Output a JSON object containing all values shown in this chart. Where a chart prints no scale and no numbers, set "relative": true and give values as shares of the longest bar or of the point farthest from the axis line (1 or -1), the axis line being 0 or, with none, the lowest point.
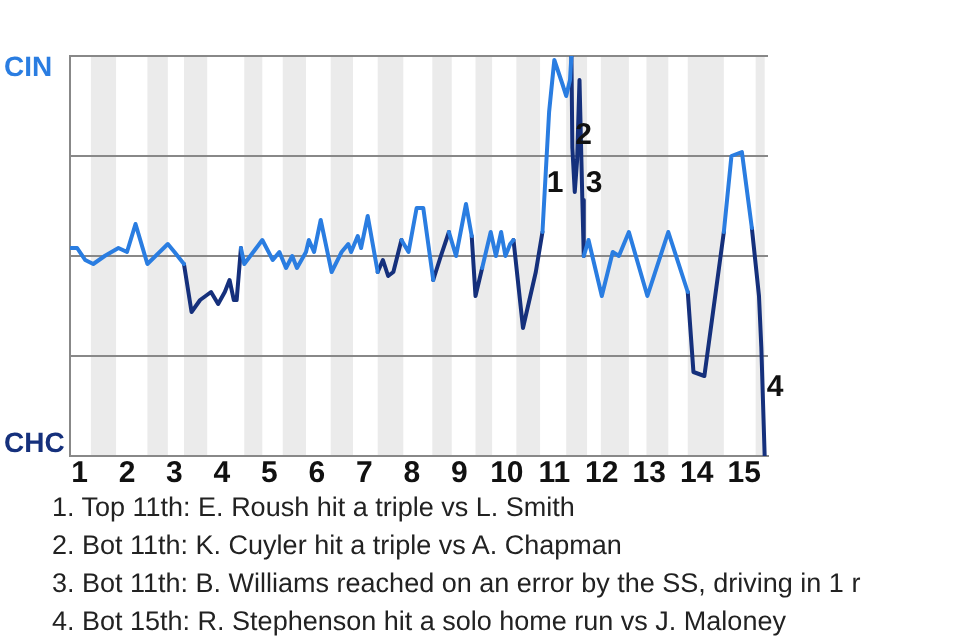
{
  "chart_data": {
    "type": "line",
    "x": [
      0.82,
      0.95,
      1.12,
      1.29,
      1.53,
      1.82,
      2.0,
      2.18,
      2.43,
      2.86,
      3.0,
      3.2,
      3.36,
      3.54,
      3.77,
      3.92,
      4.06,
      4.16,
      4.25,
      4.31,
      4.4,
      4.47,
      4.85,
      5.07,
      5.21,
      5.35,
      5.48,
      5.58,
      5.77,
      5.83,
      5.94,
      6.08,
      6.31,
      6.52,
      6.66,
      6.72,
      6.86,
      6.93,
      7.07,
      7.28,
      7.39,
      7.5,
      7.61,
      7.78,
      7.93,
      8.1,
      8.24,
      8.45,
      8.61,
      8.78,
      8.93,
      9.14,
      9.26,
      9.34,
      9.48,
      9.66,
      9.77,
      9.88,
      9.97,
      10.07,
      10.14,
      10.34,
      10.61,
      10.75,
      10.89,
      11.0,
      11.17,
      11.25,
      11.33,
      11.36,
      11.38,
      11.43,
      11.48,
      11.53,
      11.59,
      11.62,
      11.72,
      12.0,
      12.23,
      12.36,
      12.57,
      12.96,
      13.4,
      13.81,
      13.93,
      14.16,
      14.57,
      14.73,
      14.95,
      15.16,
      15.31,
      15.36,
      15.43
    ],
    "series": [
      {
        "name": "CIN",
        "color": "#2a7de1",
        "values": [
          0.52,
          0.52,
          0.49,
          0.48,
          0.5,
          0.52,
          0.51,
          0.58,
          0.48,
          0.53,
          0.51,
          0.48,
          null,
          null,
          null,
          null,
          null,
          null,
          null,
          null,
          0.52,
          0.48,
          0.54,
          0.49,
          0.51,
          0.47,
          0.5,
          0.47,
          0.51,
          0.54,
          0.51,
          0.59,
          0.46,
          0.51,
          0.53,
          0.51,
          0.55,
          0.52,
          0.6,
          0.46,
          null,
          null,
          null,
          0.54,
          0.51,
          0.62,
          0.62,
          0.44,
          null,
          0.56,
          0.5,
          0.63,
          0.55,
          null,
          0.47,
          0.56,
          0.5,
          0.56,
          0.5,
          0.53,
          0.54,
          null,
          null,
          0.56,
          0.86,
          0.99,
          0.93,
          0.9,
          0.94,
          1,
          null,
          null,
          null,
          null,
          null,
          0.5,
          0.54,
          0.4,
          0.51,
          0.5,
          0.56,
          0.4,
          0.56,
          0.41,
          null,
          null,
          0.56,
          0.75,
          0.76,
          0.57,
          null,
          null,
          null
        ]
      },
      {
        "name": "CHC",
        "color": "#15307c",
        "values": [
          null,
          null,
          null,
          null,
          null,
          null,
          null,
          null,
          null,
          null,
          null,
          0.48,
          0.36,
          0.39,
          0.41,
          0.38,
          0.41,
          0.44,
          0.39,
          0.39,
          0.52,
          null,
          null,
          null,
          null,
          null,
          null,
          null,
          null,
          null,
          null,
          null,
          null,
          null,
          null,
          null,
          null,
          null,
          null,
          0.46,
          0.49,
          0.45,
          0.46,
          0.54,
          null,
          null,
          null,
          0.44,
          0.5,
          0.56,
          null,
          null,
          0.55,
          0.4,
          0.47,
          null,
          null,
          null,
          null,
          null,
          0.54,
          0.32,
          0.46,
          0.56,
          null,
          null,
          null,
          null,
          null,
          1,
          0.77,
          0.66,
          0.74,
          0.94,
          0.64,
          0.5,
          null,
          null,
          null,
          null,
          null,
          null,
          null,
          0.41,
          0.21,
          0.2,
          0.56,
          null,
          null,
          0.57,
          0.4,
          0.27,
          0
        ]
      }
    ],
    "relative": true,
    "xlim": [
      0.8,
      15.5
    ],
    "xticks": [
      1,
      2,
      3,
      4,
      5,
      6,
      7,
      8,
      9,
      10,
      11,
      12,
      13,
      14,
      15
    ],
    "bands": [
      {
        "axis": "x",
        "from": 1.24,
        "to": 1.77,
        "color": "#ebebeb"
      },
      {
        "axis": "x",
        "from": 2.43,
        "to": 2.86,
        "color": "#ebebeb"
      },
      {
        "axis": "x",
        "from": 3.2,
        "to": 3.69,
        "color": "#ebebeb"
      },
      {
        "axis": "x",
        "from": 4.47,
        "to": 4.85,
        "color": "#ebebeb"
      },
      {
        "axis": "x",
        "from": 5.28,
        "to": 5.77,
        "color": "#ebebeb"
      },
      {
        "axis": "x",
        "from": 6.29,
        "to": 6.76,
        "color": "#ebebeb"
      },
      {
        "axis": "x",
        "from": 7.28,
        "to": 7.82,
        "color": "#ebebeb"
      },
      {
        "axis": "x",
        "from": 8.43,
        "to": 8.84,
        "color": "#ebebeb"
      },
      {
        "axis": "x",
        "from": 9.34,
        "to": 9.69,
        "color": "#ebebeb"
      },
      {
        "axis": "x",
        "from": 10.2,
        "to": 10.7,
        "color": "#ebebeb"
      },
      {
        "axis": "x",
        "from": 11.25,
        "to": 11.69,
        "color": "#ebebeb"
      },
      {
        "axis": "x",
        "from": 11.98,
        "to": 12.57,
        "color": "#ebebeb"
      },
      {
        "axis": "x",
        "from": 12.94,
        "to": 13.4,
        "color": "#ebebeb"
      },
      {
        "axis": "x",
        "from": 13.81,
        "to": 14.57,
        "color": "#ebebeb"
      },
      {
        "axis": "x",
        "from": 15.24,
        "to": 15.43,
        "color": "#ebebeb"
      }
    ],
    "annotations": [
      {
        "text": "1",
        "x": 10.8,
        "y": 0.68
      },
      {
        "text": "2",
        "x": 11.4,
        "y": 0.8
      },
      {
        "text": "3",
        "x": 11.62,
        "y": 0.68
      },
      {
        "text": "4",
        "x": 15.43,
        "y": 0.17
      },
      "1. Top 11th: E. Roush hit a triple vs L. Smith",
      "2. Bot 11th: K. Cuyler hit a triple vs A. Chapman",
      "3. Bot 11th: B. Williams reached on an error by the SS, driving in 1 r",
      "4. Bot 15th: R. Stephenson hit a solo home run vs J. Maloney"
    ],
    "grid": "y",
    "legend": "left",
    "marker": "none",
    "line_style": "solid"
  }
}
